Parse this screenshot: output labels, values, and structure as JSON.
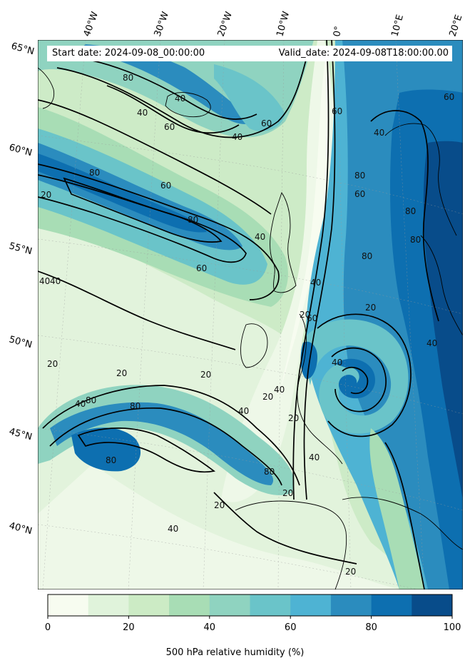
{
  "header": {
    "start_date": "Start date: 2024-09-08_00:00:00",
    "valid_date": "Valid_date: 2024-09-08T18:00:00.00"
  },
  "map": {
    "variable": "500 hPa relative humidity (%)",
    "top_longitude_labels": [
      "40°W",
      "30°W",
      "20°W",
      "10°W",
      "0°",
      "10°E",
      "20°E"
    ],
    "left_latitude_labels": [
      "65°N",
      "60°N",
      "55°N",
      "50°N",
      "45°N",
      "40°N"
    ],
    "contour_levels": [
      20,
      40,
      60,
      80
    ],
    "contour_labels": [
      {
        "text": "80"
      },
      {
        "text": "40"
      },
      {
        "text": "40"
      },
      {
        "text": "60"
      },
      {
        "text": "60"
      },
      {
        "text": "40"
      },
      {
        "text": "80"
      },
      {
        "text": "60"
      },
      {
        "text": "20"
      },
      {
        "text": "80"
      },
      {
        "text": "40"
      },
      {
        "text": "60"
      },
      {
        "text": "40"
      },
      {
        "text": "40"
      },
      {
        "text": "20"
      },
      {
        "text": "20"
      },
      {
        "text": "20"
      },
      {
        "text": "40"
      },
      {
        "text": "80"
      },
      {
        "text": "80"
      },
      {
        "text": "80"
      },
      {
        "text": "20"
      },
      {
        "text": "40"
      },
      {
        "text": "40"
      },
      {
        "text": "60"
      },
      {
        "text": "80"
      },
      {
        "text": "20"
      },
      {
        "text": "40"
      },
      {
        "text": "20"
      },
      {
        "text": "40"
      },
      {
        "text": "40"
      },
      {
        "text": "20"
      },
      {
        "text": "20"
      },
      {
        "text": "60"
      },
      {
        "text": "80"
      },
      {
        "text": "80"
      },
      {
        "text": "60"
      },
      {
        "text": "80"
      },
      {
        "text": "80"
      },
      {
        "text": "40"
      },
      {
        "text": "40"
      },
      {
        "text": "60"
      },
      {
        "text": "40"
      },
      {
        "text": "20"
      },
      {
        "text": "20"
      }
    ]
  },
  "colorbar": {
    "ticks": [
      "0",
      "20",
      "40",
      "60",
      "80",
      "100"
    ],
    "colors": [
      "#f7fcf0",
      "#e0f3db",
      "#ccebc5",
      "#a8ddb5",
      "#8fd3c0",
      "#6ac4c9",
      "#4eb3d3",
      "#2b8cbe",
      "#0d6fb0",
      "#084c8a"
    ],
    "label": "500 hPa relative humidity (%)"
  }
}
